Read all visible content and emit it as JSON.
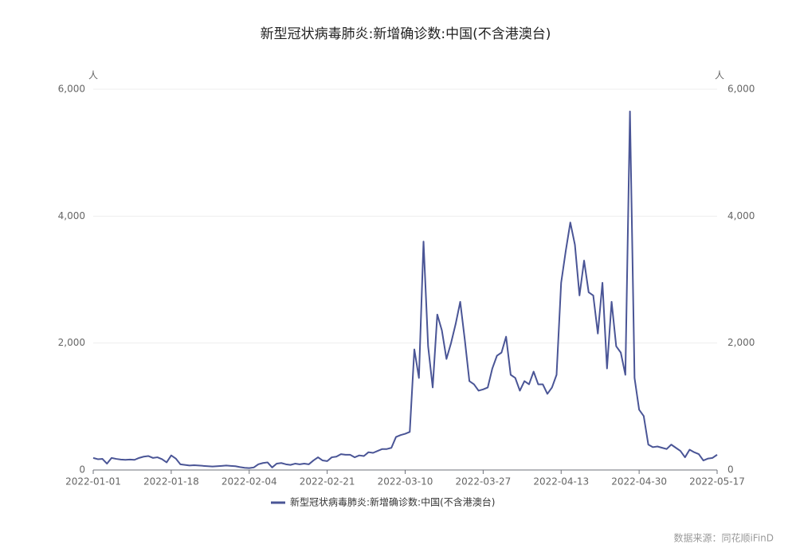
{
  "chart_data": {
    "type": "line",
    "title": "新型冠状病毒肺炎:新增确诊数:中国(不含港澳台)",
    "y_unit": "人",
    "y2_unit": "人",
    "source": "数据来源：同花顺iFinD",
    "x": [
      "2022-01-01",
      "2022-01-02",
      "2022-01-03",
      "2022-01-04",
      "2022-01-05",
      "2022-01-06",
      "2022-01-07",
      "2022-01-08",
      "2022-01-09",
      "2022-01-10",
      "2022-01-11",
      "2022-01-12",
      "2022-01-13",
      "2022-01-14",
      "2022-01-15",
      "2022-01-16",
      "2022-01-17",
      "2022-01-18",
      "2022-01-19",
      "2022-01-20",
      "2022-01-21",
      "2022-01-22",
      "2022-01-23",
      "2022-01-24",
      "2022-01-25",
      "2022-01-26",
      "2022-01-27",
      "2022-01-28",
      "2022-01-29",
      "2022-01-30",
      "2022-01-31",
      "2022-02-01",
      "2022-02-02",
      "2022-02-03",
      "2022-02-04",
      "2022-02-05",
      "2022-02-06",
      "2022-02-07",
      "2022-02-08",
      "2022-02-09",
      "2022-02-10",
      "2022-02-11",
      "2022-02-12",
      "2022-02-13",
      "2022-02-14",
      "2022-02-15",
      "2022-02-16",
      "2022-02-17",
      "2022-02-18",
      "2022-02-19",
      "2022-02-20",
      "2022-02-21",
      "2022-02-22",
      "2022-02-23",
      "2022-02-24",
      "2022-02-25",
      "2022-02-26",
      "2022-02-27",
      "2022-02-28",
      "2022-03-01",
      "2022-03-02",
      "2022-03-03",
      "2022-03-04",
      "2022-03-05",
      "2022-03-06",
      "2022-03-07",
      "2022-03-08",
      "2022-03-09",
      "2022-03-10",
      "2022-03-11",
      "2022-03-12",
      "2022-03-13",
      "2022-03-14",
      "2022-03-15",
      "2022-03-16",
      "2022-03-17",
      "2022-03-18",
      "2022-03-19",
      "2022-03-20",
      "2022-03-21",
      "2022-03-22",
      "2022-03-23",
      "2022-03-24",
      "2022-03-25",
      "2022-03-26",
      "2022-03-27",
      "2022-03-28",
      "2022-03-29",
      "2022-03-30",
      "2022-03-31",
      "2022-04-01",
      "2022-04-02",
      "2022-04-03",
      "2022-04-04",
      "2022-04-05",
      "2022-04-06",
      "2022-04-07",
      "2022-04-08",
      "2022-04-09",
      "2022-04-10",
      "2022-04-11",
      "2022-04-12",
      "2022-04-13",
      "2022-04-14",
      "2022-04-15",
      "2022-04-16",
      "2022-04-17",
      "2022-04-18",
      "2022-04-19",
      "2022-04-20",
      "2022-04-21",
      "2022-04-22",
      "2022-04-23",
      "2022-04-24",
      "2022-04-25",
      "2022-04-26",
      "2022-04-27",
      "2022-04-28",
      "2022-04-29",
      "2022-04-30",
      "2022-05-01",
      "2022-05-02",
      "2022-05-03",
      "2022-05-04",
      "2022-05-05",
      "2022-05-06",
      "2022-05-07",
      "2022-05-08",
      "2022-05-09",
      "2022-05-10",
      "2022-05-11",
      "2022-05-12",
      "2022-05-13",
      "2022-05-14",
      "2022-05-15",
      "2022-05-16",
      "2022-05-17"
    ],
    "xticks": [
      "2022-01-01",
      "2022-01-18",
      "2022-02-04",
      "2022-02-21",
      "2022-03-10",
      "2022-03-27",
      "2022-04-13",
      "2022-04-30",
      "2022-05-17"
    ],
    "series": [
      {
        "name": "新型冠状病毒肺炎:新增确诊数:中国(不含港澳台)",
        "color": "#4a5596",
        "values": [
          190,
          170,
          175,
          100,
          190,
          175,
          165,
          160,
          165,
          160,
          190,
          210,
          220,
          190,
          200,
          170,
          120,
          230,
          180,
          90,
          80,
          70,
          75,
          70,
          65,
          60,
          55,
          60,
          65,
          70,
          65,
          60,
          45,
          35,
          30,
          40,
          90,
          110,
          120,
          40,
          100,
          110,
          90,
          80,
          100,
          90,
          100,
          90,
          150,
          200,
          150,
          140,
          200,
          210,
          250,
          240,
          240,
          200,
          230,
          220,
          280,
          270,
          300,
          330,
          330,
          350,
          520,
          550,
          570,
          600,
          1900,
          1450,
          3600,
          1950,
          1300,
          2450,
          2200,
          1750,
          2000,
          2300,
          2650,
          2050,
          1400,
          1350,
          1250,
          1270,
          1300,
          1600,
          1800,
          1850,
          2100,
          1500,
          1450,
          1250,
          1400,
          1350,
          1550,
          1350,
          1350,
          1200,
          1300,
          1500,
          2950,
          3450,
          3900,
          3550,
          2750,
          3300,
          2800,
          2750,
          2150,
          2950,
          1600,
          2650,
          1950,
          1850,
          1500,
          5650,
          1450,
          950,
          850,
          400,
          360,
          370,
          350,
          330,
          400,
          350,
          300,
          200,
          320,
          280,
          250,
          150,
          180,
          190,
          240
        ]
      }
    ],
    "ylim": [
      0,
      6000
    ],
    "yticks": [
      0,
      {
        "value": 2000,
        "label": "2,000"
      },
      {
        "value": 4000,
        "label": "4,000"
      },
      {
        "value": 6000,
        "label": "6,000"
      }
    ],
    "y2lim": [
      0,
      6000
    ],
    "y2ticks": [
      0,
      {
        "value": 2000,
        "label": "2,000"
      },
      {
        "value": 4000,
        "label": "4,000"
      },
      {
        "value": 6000,
        "label": "6,000"
      }
    ],
    "grid": true,
    "legend": "bottom"
  }
}
